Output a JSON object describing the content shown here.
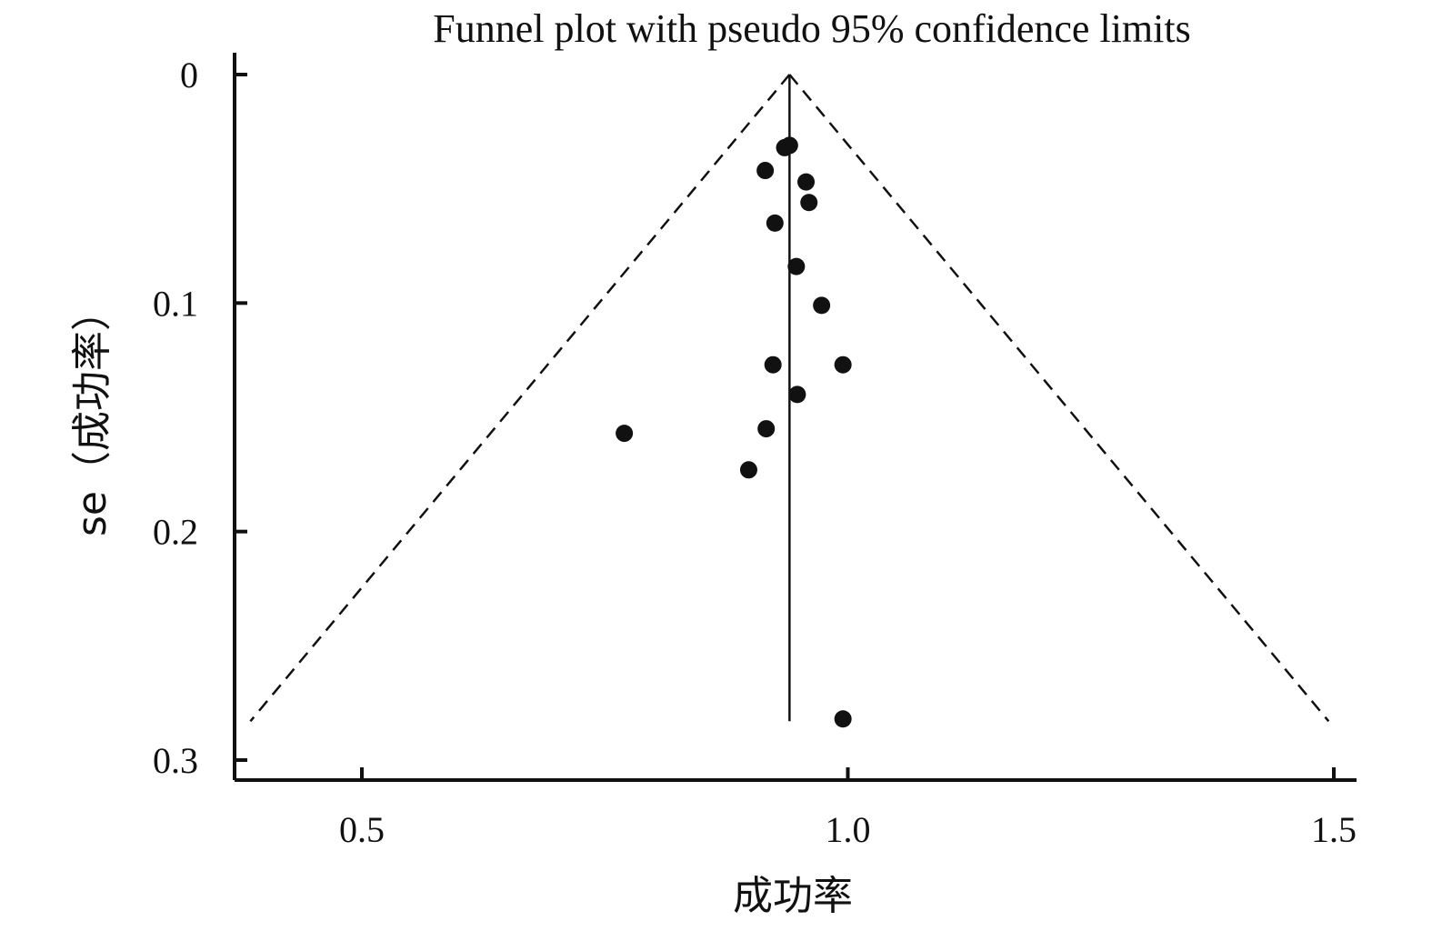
{
  "chart_data": {
    "type": "scatter",
    "title": "Funnel plot with pseudo 95% confidence limits",
    "xlabel": "成功率",
    "ylabel": "se（成功率）",
    "xlim": [
      0.37,
      1.52
    ],
    "ylim": [
      0.3,
      0
    ],
    "y_reversed": true,
    "x_ticks": [
      0.5,
      1.0,
      1.5
    ],
    "x_tick_labels": [
      "0.5",
      "1.0",
      "1.5"
    ],
    "y_ticks": [
      0,
      0.1,
      0.2,
      0.3
    ],
    "y_tick_labels": [
      "0",
      "0.1",
      "0.2",
      "0.3"
    ],
    "pooled_estimate": 0.94,
    "pooled_line_se_range": [
      0,
      0.283
    ],
    "confidence_limits": {
      "z": 1.96,
      "se_max": 0.283,
      "style": "dashed"
    },
    "grid": false,
    "legend": "none",
    "points": [
      {
        "x": 0.94,
        "y": 0.031
      },
      {
        "x": 0.935,
        "y": 0.032
      },
      {
        "x": 0.915,
        "y": 0.042
      },
      {
        "x": 0.957,
        "y": 0.047
      },
      {
        "x": 0.96,
        "y": 0.056
      },
      {
        "x": 0.925,
        "y": 0.065
      },
      {
        "x": 0.947,
        "y": 0.084
      },
      {
        "x": 0.973,
        "y": 0.101
      },
      {
        "x": 0.923,
        "y": 0.127
      },
      {
        "x": 0.995,
        "y": 0.127
      },
      {
        "x": 0.948,
        "y": 0.14
      },
      {
        "x": 0.916,
        "y": 0.155
      },
      {
        "x": 0.77,
        "y": 0.157
      },
      {
        "x": 0.898,
        "y": 0.173
      },
      {
        "x": 0.995,
        "y": 0.282
      }
    ],
    "colors": {
      "marker": "#111111",
      "line": "#111111",
      "axis": "#111111"
    }
  }
}
